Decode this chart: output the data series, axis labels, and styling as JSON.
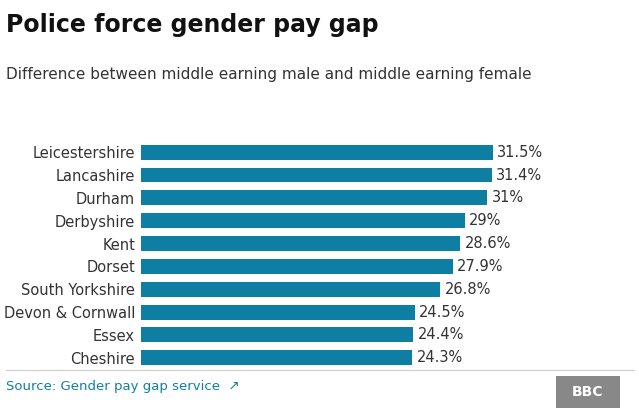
{
  "title": "Police force gender pay gap",
  "subtitle": "Difference between middle earning male and middle earning female",
  "categories": [
    "Cheshire",
    "Essex",
    "Devon & Cornwall",
    "South Yorkshire",
    "Dorset",
    "Kent",
    "Derbyshire",
    "Durham",
    "Lancashire",
    "Leicestershire"
  ],
  "values": [
    24.3,
    24.4,
    24.5,
    26.8,
    27.9,
    28.6,
    29.0,
    31.0,
    31.4,
    31.5
  ],
  "labels": [
    "24.3%",
    "24.4%",
    "24.5%",
    "26.8%",
    "27.9%",
    "28.6%",
    "29%",
    "31%",
    "31.4%",
    "31.5%"
  ],
  "bar_color": "#0e7fa3",
  "bg_color": "#ffffff",
  "text_color": "#333333",
  "label_color": "#333333",
  "source_text": "Source: Gender pay gap service",
  "source_color": "#0e7fa3",
  "bbc_text": "BBC",
  "bbc_bg": "#888888",
  "bbc_fg": "#ffffff",
  "xlim": [
    0,
    36
  ],
  "title_fontsize": 17,
  "subtitle_fontsize": 11,
  "tick_fontsize": 10.5,
  "label_fontsize": 10.5,
  "source_fontsize": 9.5
}
